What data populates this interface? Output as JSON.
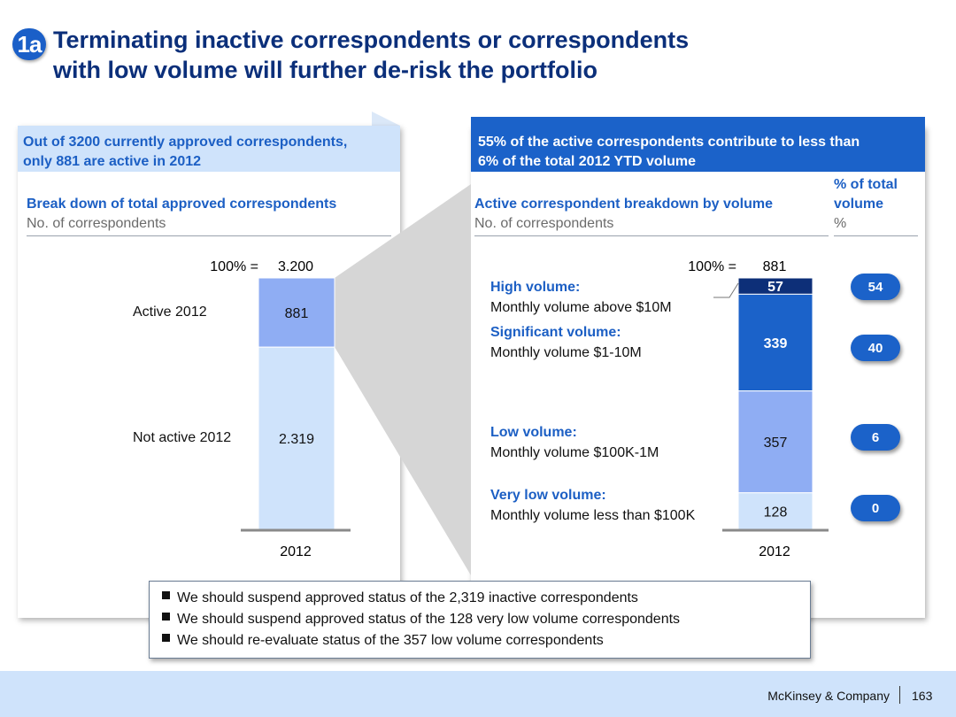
{
  "title": {
    "badge": "1a",
    "line1": "Terminating inactive correspondents or correspondents",
    "line2": "with low volume will further de-risk the portfolio"
  },
  "left": {
    "header_line1": "Out of 3200 currently approved correspondents,",
    "header_line2": "only 881 are active in 2012",
    "section_title": "Break down of total approved correspondents",
    "section_subtitle": "No. of correspondents"
  },
  "right": {
    "header_line1": "55% of the active correspondents contribute to less than",
    "header_line2": "6% of the total 2012 YTD volume",
    "section_title": "Active correspondent breakdown by volume",
    "section_subtitle": "No. of correspondents",
    "pct_title_line1": "% of total",
    "pct_title_line2": "volume",
    "pct_subtitle": "%"
  },
  "chart_data": [
    {
      "type": "bar",
      "stacked": true,
      "title": "Break down of total approved correspondents",
      "ylabel": "No. of correspondents",
      "categories": [
        "2012"
      ],
      "total_label": "100% =",
      "total_display": "3.200",
      "total": 3200,
      "series": [
        {
          "name": "Active 2012",
          "values": [
            881
          ],
          "display": "881",
          "color": "#8fadf3"
        },
        {
          "name": "Not active 2012",
          "values": [
            2319
          ],
          "display": "2.319",
          "color": "#cfe3fb"
        }
      ]
    },
    {
      "type": "bar",
      "stacked": true,
      "title": "Active correspondent breakdown by volume",
      "ylabel": "No. of correspondents",
      "categories": [
        "2012"
      ],
      "total_label": "100% =",
      "total_display": "881",
      "total": 881,
      "series": [
        {
          "name": "High volume:",
          "description": "Monthly volume above $10M",
          "values": [
            57
          ],
          "display": "57",
          "pct_of_volume": "54",
          "color": "#0d2f78",
          "text_color": "#ffffff"
        },
        {
          "name": "Significant volume:",
          "description": "Monthly volume $1-10M",
          "values": [
            339
          ],
          "display": "339",
          "pct_of_volume": "40",
          "color": "#1b62c9",
          "text_color": "#ffffff"
        },
        {
          "name": "Low volume:",
          "description": "Monthly volume $100K-1M",
          "values": [
            357
          ],
          "display": "357",
          "pct_of_volume": "6",
          "color": "#8fadf3",
          "text_color": "#111111"
        },
        {
          "name": "Very low volume:",
          "description": "Monthly volume less than $100K",
          "values": [
            128
          ],
          "display": "128",
          "pct_of_volume": "0",
          "color": "#cfe3fb",
          "text_color": "#111111"
        }
      ]
    }
  ],
  "bullets": [
    "We should suspend approved status of the 2,319 inactive correspondents",
    "We should suspend approved status of the 128 very low volume correspondents",
    "We should re-evaluate status of the 357 low volume correspondents"
  ],
  "footer": {
    "brand": "McKinsey & Company",
    "page": "163"
  }
}
